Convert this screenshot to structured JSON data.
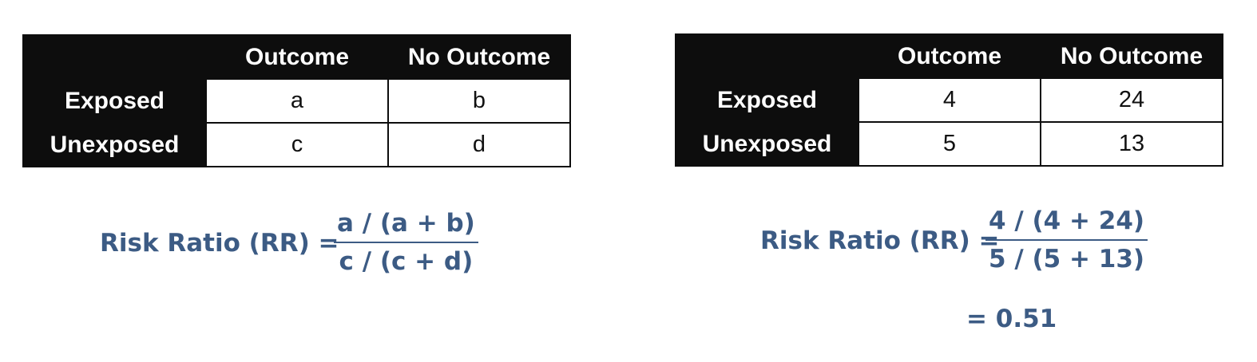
{
  "left_table": {
    "header": [
      "",
      "Outcome",
      "No Outcome"
    ],
    "rows": [
      {
        "label": "Exposed",
        "cells": [
          "a",
          "b"
        ]
      },
      {
        "label": "Unexposed",
        "cells": [
          "c",
          "d"
        ]
      }
    ]
  },
  "right_table": {
    "header": [
      "",
      "Outcome",
      "No Outcome"
    ],
    "rows": [
      {
        "label": "Exposed",
        "cells": [
          "4",
          "24"
        ]
      },
      {
        "label": "Unexposed",
        "cells": [
          "5",
          "13"
        ]
      }
    ]
  },
  "left_formula": {
    "lhs": "Risk Ratio (RR) =",
    "numerator": "a / (a + b)",
    "denominator": "c / (c + d)"
  },
  "right_formula": {
    "lhs": "Risk Ratio (RR) =",
    "numerator": "4 / (4 + 24)",
    "denominator": "5 / (5 + 13)",
    "result": "= 0.51"
  },
  "colors": {
    "table_dark": "#0d0d0d",
    "formula_text": "#3c5b84"
  }
}
